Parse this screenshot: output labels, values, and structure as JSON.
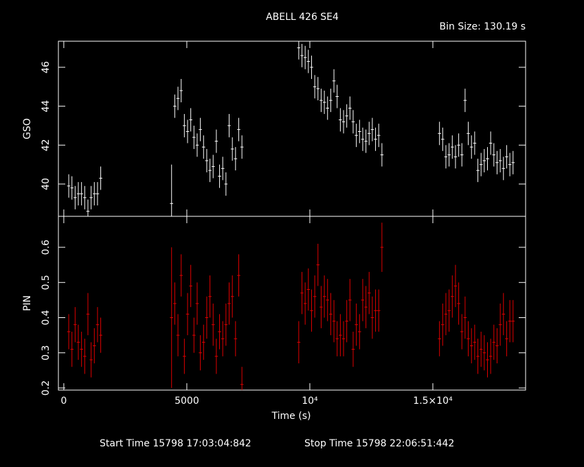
{
  "title": "ABELL 426 SE4",
  "subtitle": "Bin Size: 130.19 s",
  "footer": [
    "Start Time 15798 17:03:04:842",
    "Stop Time 15798 22:06:51:442"
  ],
  "chart_data": [
    {
      "type": "errorbar",
      "ylabel": "GSO",
      "color": "#ffffff",
      "xlim": [
        -220,
        18770
      ],
      "ylim": [
        38.34,
        47.34
      ],
      "yticks": [
        40,
        42,
        44,
        46
      ],
      "bin_width": 130.19,
      "x": [
        200,
        330,
        460,
        590,
        720,
        850,
        980,
        1110,
        1240,
        1370,
        1500,
        4380,
        4510,
        4640,
        4770,
        4900,
        5030,
        5160,
        5290,
        5420,
        5550,
        5680,
        5810,
        5940,
        6070,
        6200,
        6330,
        6460,
        6590,
        6720,
        6850,
        6980,
        7110,
        7240,
        9550,
        9680,
        9810,
        9940,
        10070,
        10200,
        10330,
        10460,
        10590,
        10720,
        10850,
        10980,
        11110,
        11240,
        11370,
        11500,
        11630,
        11760,
        11890,
        12020,
        12150,
        12280,
        12410,
        12540,
        12670,
        12800,
        12930,
        15270,
        15400,
        15530,
        15660,
        15790,
        15920,
        16050,
        16180,
        16310,
        16440,
        16570,
        16700,
        16830,
        16960,
        17090,
        17220,
        17350,
        17480,
        17610,
        17740,
        17870,
        18000,
        18130,
        18260
      ],
      "values": [
        39.9,
        39.8,
        39.3,
        39.5,
        39.5,
        39.3,
        38.6,
        39.3,
        39.5,
        39.5,
        40.3,
        39.0,
        44.0,
        44.4,
        44.8,
        43.0,
        42.7,
        43.3,
        42.4,
        42.0,
        42.8,
        41.9,
        41.2,
        40.7,
        40.9,
        42.2,
        40.4,
        40.8,
        40.0,
        43.0,
        41.8,
        41.3,
        42.8,
        41.9,
        47.0,
        46.6,
        46.5,
        46.3,
        46.0,
        45.0,
        44.9,
        44.3,
        44.2,
        43.9,
        44.3,
        45.3,
        44.5,
        43.3,
        43.2,
        43.5,
        43.9,
        43.2,
        42.5,
        42.7,
        42.3,
        42.2,
        42.6,
        42.8,
        42.3,
        42.5,
        41.5,
        42.6,
        42.3,
        41.4,
        41.5,
        41.9,
        41.4,
        42.0,
        41.5,
        44.3,
        42.6,
        41.9,
        42.1,
        40.7,
        41.0,
        41.2,
        41.3,
        42.1,
        41.5,
        41.1,
        41.2,
        40.8,
        41.4,
        41.0,
        41.1
      ],
      "errors": [
        0.6,
        0.6,
        0.6,
        0.6,
        0.6,
        0.6,
        0.6,
        0.6,
        0.6,
        0.6,
        0.6,
        2.0,
        0.6,
        0.6,
        0.6,
        0.6,
        0.6,
        0.6,
        0.6,
        0.6,
        0.6,
        0.6,
        0.6,
        0.6,
        0.6,
        0.6,
        0.6,
        0.6,
        0.6,
        0.6,
        0.6,
        0.6,
        0.6,
        0.6,
        0.6,
        0.6,
        0.6,
        0.6,
        0.6,
        0.6,
        0.6,
        0.6,
        0.6,
        0.6,
        0.6,
        0.6,
        0.6,
        0.6,
        0.6,
        0.6,
        0.6,
        0.6,
        0.6,
        0.6,
        0.6,
        0.6,
        0.6,
        0.6,
        0.6,
        0.6,
        0.6,
        0.6,
        0.6,
        0.6,
        0.6,
        0.6,
        0.6,
        0.6,
        0.6,
        0.6,
        0.6,
        0.6,
        0.6,
        0.6,
        0.6,
        0.6,
        0.6,
        0.6,
        0.6,
        0.6,
        0.6,
        0.6,
        0.6,
        0.6,
        0.6
      ]
    },
    {
      "type": "errorbar",
      "ylabel": "PIN",
      "xlabel": "Time (s)",
      "color": "#e00000",
      "xlim": [
        -220,
        18770
      ],
      "ylim": [
        0.194,
        0.688
      ],
      "yticks": [
        0.2,
        0.3,
        0.4,
        0.5,
        0.6
      ],
      "xticks": [
        0,
        5000,
        {
          "value": 10000,
          "label": "10⁴"
        },
        {
          "value": 15000,
          "label": "1.5×10⁴"
        }
      ],
      "bin_width": 130.19,
      "x": [
        200,
        330,
        460,
        590,
        720,
        850,
        980,
        1110,
        1240,
        1370,
        1500,
        4380,
        4510,
        4640,
        4770,
        4900,
        5030,
        5160,
        5290,
        5420,
        5550,
        5680,
        5810,
        5940,
        6070,
        6200,
        6330,
        6460,
        6590,
        6720,
        6850,
        6980,
        7110,
        7240,
        9550,
        9680,
        9810,
        9940,
        10070,
        10200,
        10330,
        10460,
        10590,
        10720,
        10850,
        10980,
        11110,
        11240,
        11370,
        11500,
        11630,
        11760,
        11890,
        12020,
        12150,
        12280,
        12410,
        12540,
        12670,
        12800,
        12930,
        15270,
        15400,
        15530,
        15660,
        15790,
        15920,
        16050,
        16180,
        16310,
        16440,
        16570,
        16700,
        16830,
        16960,
        17090,
        17220,
        17350,
        17480,
        17610,
        17740,
        17870,
        18000,
        18130,
        18260
      ],
      "values": [
        0.36,
        0.31,
        0.38,
        0.33,
        0.31,
        0.29,
        0.41,
        0.28,
        0.32,
        0.38,
        0.35,
        0.4,
        0.44,
        0.35,
        0.52,
        0.29,
        0.41,
        0.49,
        0.35,
        0.44,
        0.3,
        0.33,
        0.4,
        0.46,
        0.38,
        0.29,
        0.36,
        0.34,
        0.38,
        0.44,
        0.46,
        0.34,
        0.52,
        0.21,
        0.33,
        0.47,
        0.44,
        0.48,
        0.42,
        0.46,
        0.55,
        0.43,
        0.46,
        0.45,
        0.41,
        0.39,
        0.34,
        0.35,
        0.34,
        0.39,
        0.45,
        0.31,
        0.38,
        0.36,
        0.45,
        0.43,
        0.47,
        0.4,
        0.42,
        0.42,
        0.6,
        0.34,
        0.38,
        0.41,
        0.42,
        0.46,
        0.49,
        0.44,
        0.36,
        0.4,
        0.34,
        0.32,
        0.33,
        0.29,
        0.31,
        0.3,
        0.28,
        0.29,
        0.33,
        0.32,
        0.38,
        0.41,
        0.34,
        0.39,
        0.39
      ],
      "errors": [
        0.05,
        0.05,
        0.05,
        0.05,
        0.05,
        0.05,
        0.06,
        0.05,
        0.05,
        0.05,
        0.05,
        0.2,
        0.06,
        0.06,
        0.06,
        0.05,
        0.06,
        0.06,
        0.05,
        0.06,
        0.05,
        0.05,
        0.06,
        0.06,
        0.06,
        0.05,
        0.05,
        0.05,
        0.06,
        0.06,
        0.06,
        0.05,
        0.06,
        0.05,
        0.06,
        0.06,
        0.06,
        0.06,
        0.06,
        0.06,
        0.06,
        0.06,
        0.06,
        0.06,
        0.06,
        0.06,
        0.05,
        0.06,
        0.05,
        0.06,
        0.06,
        0.05,
        0.06,
        0.05,
        0.06,
        0.06,
        0.06,
        0.06,
        0.06,
        0.06,
        0.07,
        0.05,
        0.06,
        0.06,
        0.06,
        0.06,
        0.06,
        0.06,
        0.05,
        0.06,
        0.05,
        0.05,
        0.05,
        0.05,
        0.05,
        0.05,
        0.05,
        0.05,
        0.05,
        0.05,
        0.06,
        0.06,
        0.05,
        0.06,
        0.06
      ]
    }
  ]
}
